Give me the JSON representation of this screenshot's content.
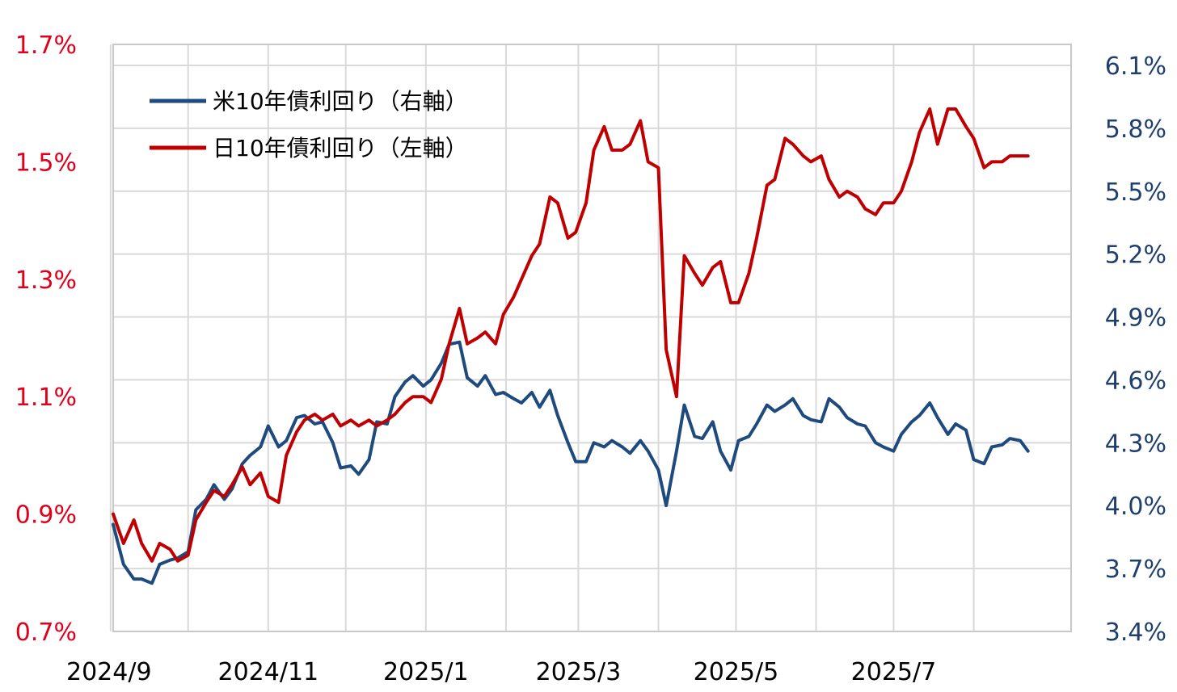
{
  "chart_data": {
    "type": "line",
    "title": "",
    "x_categories": [
      "2024/9",
      "2024/11",
      "2025/1",
      "2025/3",
      "2025/5",
      "2025/7"
    ],
    "x_range": [
      "2024-09-02",
      "2025-08-22"
    ],
    "y_left": {
      "ticks": [
        "0.7%",
        "0.9%",
        "1.1%",
        "1.3%",
        "1.5%",
        "1.7%"
      ],
      "min": 0.7,
      "max": 1.7,
      "unit": "%",
      "color": "#e0001b"
    },
    "y_right": {
      "ticks": [
        "3.4%",
        "3.7%",
        "4.0%",
        "4.3%",
        "4.6%",
        "4.9%",
        "5.2%",
        "5.5%",
        "5.8%",
        "6.1%"
      ],
      "min": 3.4,
      "max": 6.2,
      "unit": "%",
      "color": "#1f3f6e"
    },
    "grid": true,
    "legend_position": "top-left",
    "series": [
      {
        "name": "米10年債利回り（右軸）",
        "axis": "right",
        "color": "#1f4a7d",
        "points": [
          [
            "2024-09-02",
            3.91
          ],
          [
            "2024-09-06",
            3.72
          ],
          [
            "2024-09-10",
            3.65
          ],
          [
            "2024-09-13",
            3.65
          ],
          [
            "2024-09-17",
            3.63
          ],
          [
            "2024-09-20",
            3.72
          ],
          [
            "2024-09-24",
            3.74
          ],
          [
            "2024-09-27",
            3.75
          ],
          [
            "2024-10-01",
            3.78
          ],
          [
            "2024-10-04",
            3.98
          ],
          [
            "2024-10-08",
            4.03
          ],
          [
            "2024-10-11",
            4.1
          ],
          [
            "2024-10-15",
            4.03
          ],
          [
            "2024-10-18",
            4.08
          ],
          [
            "2024-10-22",
            4.2
          ],
          [
            "2024-10-25",
            4.24
          ],
          [
            "2024-10-29",
            4.28
          ],
          [
            "2024-11-01",
            4.38
          ],
          [
            "2024-11-05",
            4.28
          ],
          [
            "2024-11-08",
            4.31
          ],
          [
            "2024-11-12",
            4.42
          ],
          [
            "2024-11-15",
            4.43
          ],
          [
            "2024-11-19",
            4.39
          ],
          [
            "2024-11-22",
            4.4
          ],
          [
            "2024-11-26",
            4.3
          ],
          [
            "2024-11-29",
            4.18
          ],
          [
            "2024-12-03",
            4.19
          ],
          [
            "2024-12-06",
            4.15
          ],
          [
            "2024-12-10",
            4.22
          ],
          [
            "2024-12-13",
            4.4
          ],
          [
            "2024-12-17",
            4.39
          ],
          [
            "2024-12-20",
            4.52
          ],
          [
            "2024-12-24",
            4.59
          ],
          [
            "2024-12-27",
            4.62
          ],
          [
            "2024-12-31",
            4.57
          ],
          [
            "2025-01-03",
            4.6
          ],
          [
            "2025-01-07",
            4.68
          ],
          [
            "2025-01-10",
            4.77
          ],
          [
            "2025-01-14",
            4.78
          ],
          [
            "2025-01-17",
            4.61
          ],
          [
            "2025-01-21",
            4.57
          ],
          [
            "2025-01-24",
            4.62
          ],
          [
            "2025-01-28",
            4.53
          ],
          [
            "2025-01-31",
            4.54
          ],
          [
            "2025-02-04",
            4.51
          ],
          [
            "2025-02-07",
            4.49
          ],
          [
            "2025-02-11",
            4.54
          ],
          [
            "2025-02-14",
            4.47
          ],
          [
            "2025-02-18",
            4.55
          ],
          [
            "2025-02-21",
            4.43
          ],
          [
            "2025-02-25",
            4.3
          ],
          [
            "2025-02-28",
            4.21
          ],
          [
            "2025-03-04",
            4.21
          ],
          [
            "2025-03-07",
            4.3
          ],
          [
            "2025-03-11",
            4.28
          ],
          [
            "2025-03-14",
            4.31
          ],
          [
            "2025-03-18",
            4.28
          ],
          [
            "2025-03-21",
            4.25
          ],
          [
            "2025-03-25",
            4.31
          ],
          [
            "2025-03-28",
            4.26
          ],
          [
            "2025-04-01",
            4.17
          ],
          [
            "2025-04-04",
            4.0
          ],
          [
            "2025-04-08",
            4.26
          ],
          [
            "2025-04-11",
            4.48
          ],
          [
            "2025-04-15",
            4.33
          ],
          [
            "2025-04-18",
            4.32
          ],
          [
            "2025-04-22",
            4.4
          ],
          [
            "2025-04-25",
            4.26
          ],
          [
            "2025-04-29",
            4.17
          ],
          [
            "2025-05-02",
            4.31
          ],
          [
            "2025-05-06",
            4.33
          ],
          [
            "2025-05-09",
            4.39
          ],
          [
            "2025-05-13",
            4.48
          ],
          [
            "2025-05-16",
            4.45
          ],
          [
            "2025-05-20",
            4.48
          ],
          [
            "2025-05-23",
            4.51
          ],
          [
            "2025-05-27",
            4.43
          ],
          [
            "2025-05-30",
            4.41
          ],
          [
            "2025-06-03",
            4.4
          ],
          [
            "2025-06-06",
            4.51
          ],
          [
            "2025-06-10",
            4.47
          ],
          [
            "2025-06-13",
            4.42
          ],
          [
            "2025-06-17",
            4.39
          ],
          [
            "2025-06-20",
            4.38
          ],
          [
            "2025-06-24",
            4.3
          ],
          [
            "2025-06-27",
            4.28
          ],
          [
            "2025-07-01",
            4.26
          ],
          [
            "2025-07-04",
            4.34
          ],
          [
            "2025-07-08",
            4.4
          ],
          [
            "2025-07-11",
            4.43
          ],
          [
            "2025-07-15",
            4.49
          ],
          [
            "2025-07-18",
            4.42
          ],
          [
            "2025-07-22",
            4.34
          ],
          [
            "2025-07-25",
            4.39
          ],
          [
            "2025-07-29",
            4.36
          ],
          [
            "2025-08-01",
            4.22
          ],
          [
            "2025-08-05",
            4.2
          ],
          [
            "2025-08-08",
            4.28
          ],
          [
            "2025-08-12",
            4.29
          ],
          [
            "2025-08-15",
            4.32
          ],
          [
            "2025-08-19",
            4.31
          ],
          [
            "2025-08-22",
            4.26
          ]
        ]
      },
      {
        "name": "日10年債利回り（左軸）",
        "axis": "left",
        "color": "#c00000",
        "points": [
          [
            "2024-09-02",
            0.9
          ],
          [
            "2024-09-06",
            0.85
          ],
          [
            "2024-09-10",
            0.89
          ],
          [
            "2024-09-13",
            0.85
          ],
          [
            "2024-09-17",
            0.82
          ],
          [
            "2024-09-20",
            0.85
          ],
          [
            "2024-09-24",
            0.84
          ],
          [
            "2024-09-27",
            0.82
          ],
          [
            "2024-10-01",
            0.83
          ],
          [
            "2024-10-04",
            0.89
          ],
          [
            "2024-10-08",
            0.92
          ],
          [
            "2024-10-11",
            0.94
          ],
          [
            "2024-10-15",
            0.93
          ],
          [
            "2024-10-18",
            0.95
          ],
          [
            "2024-10-22",
            0.98
          ],
          [
            "2024-10-25",
            0.95
          ],
          [
            "2024-10-29",
            0.97
          ],
          [
            "2024-11-01",
            0.93
          ],
          [
            "2024-11-05",
            0.92
          ],
          [
            "2024-11-08",
            1.0
          ],
          [
            "2024-11-12",
            1.04
          ],
          [
            "2024-11-15",
            1.06
          ],
          [
            "2024-11-19",
            1.07
          ],
          [
            "2024-11-22",
            1.06
          ],
          [
            "2024-11-26",
            1.07
          ],
          [
            "2024-11-29",
            1.05
          ],
          [
            "2024-12-03",
            1.06
          ],
          [
            "2024-12-06",
            1.05
          ],
          [
            "2024-12-10",
            1.06
          ],
          [
            "2024-12-13",
            1.05
          ],
          [
            "2024-12-17",
            1.06
          ],
          [
            "2024-12-20",
            1.07
          ],
          [
            "2024-12-24",
            1.09
          ],
          [
            "2024-12-27",
            1.1
          ],
          [
            "2024-12-31",
            1.1
          ],
          [
            "2025-01-03",
            1.09
          ],
          [
            "2025-01-07",
            1.13
          ],
          [
            "2025-01-10",
            1.19
          ],
          [
            "2025-01-14",
            1.25
          ],
          [
            "2025-01-17",
            1.19
          ],
          [
            "2025-01-21",
            1.2
          ],
          [
            "2025-01-24",
            1.21
          ],
          [
            "2025-01-28",
            1.19
          ],
          [
            "2025-01-31",
            1.24
          ],
          [
            "2025-02-04",
            1.27
          ],
          [
            "2025-02-07",
            1.3
          ],
          [
            "2025-02-11",
            1.34
          ],
          [
            "2025-02-14",
            1.36
          ],
          [
            "2025-02-18",
            1.44
          ],
          [
            "2025-02-21",
            1.43
          ],
          [
            "2025-02-25",
            1.37
          ],
          [
            "2025-02-28",
            1.38
          ],
          [
            "2025-03-04",
            1.43
          ],
          [
            "2025-03-07",
            1.52
          ],
          [
            "2025-03-11",
            1.56
          ],
          [
            "2025-03-14",
            1.52
          ],
          [
            "2025-03-18",
            1.52
          ],
          [
            "2025-03-21",
            1.53
          ],
          [
            "2025-03-25",
            1.57
          ],
          [
            "2025-03-28",
            1.5
          ],
          [
            "2025-04-01",
            1.49
          ],
          [
            "2025-04-04",
            1.18
          ],
          [
            "2025-04-08",
            1.1
          ],
          [
            "2025-04-11",
            1.34
          ],
          [
            "2025-04-15",
            1.31
          ],
          [
            "2025-04-18",
            1.29
          ],
          [
            "2025-04-22",
            1.32
          ],
          [
            "2025-04-25",
            1.33
          ],
          [
            "2025-04-29",
            1.26
          ],
          [
            "2025-05-02",
            1.26
          ],
          [
            "2025-05-06",
            1.31
          ],
          [
            "2025-05-09",
            1.37
          ],
          [
            "2025-05-13",
            1.46
          ],
          [
            "2025-05-16",
            1.47
          ],
          [
            "2025-05-20",
            1.54
          ],
          [
            "2025-05-23",
            1.53
          ],
          [
            "2025-05-27",
            1.51
          ],
          [
            "2025-05-30",
            1.5
          ],
          [
            "2025-06-03",
            1.51
          ],
          [
            "2025-06-06",
            1.47
          ],
          [
            "2025-06-10",
            1.44
          ],
          [
            "2025-06-13",
            1.45
          ],
          [
            "2025-06-17",
            1.44
          ],
          [
            "2025-06-20",
            1.42
          ],
          [
            "2025-06-24",
            1.41
          ],
          [
            "2025-06-27",
            1.43
          ],
          [
            "2025-07-01",
            1.43
          ],
          [
            "2025-07-04",
            1.45
          ],
          [
            "2025-07-08",
            1.5
          ],
          [
            "2025-07-11",
            1.55
          ],
          [
            "2025-07-15",
            1.59
          ],
          [
            "2025-07-18",
            1.53
          ],
          [
            "2025-07-22",
            1.59
          ],
          [
            "2025-07-25",
            1.59
          ],
          [
            "2025-07-29",
            1.56
          ],
          [
            "2025-08-01",
            1.54
          ],
          [
            "2025-08-05",
            1.49
          ],
          [
            "2025-08-08",
            1.5
          ],
          [
            "2025-08-12",
            1.5
          ],
          [
            "2025-08-15",
            1.51
          ],
          [
            "2025-08-19",
            1.51
          ],
          [
            "2025-08-22",
            1.51
          ]
        ]
      }
    ]
  }
}
